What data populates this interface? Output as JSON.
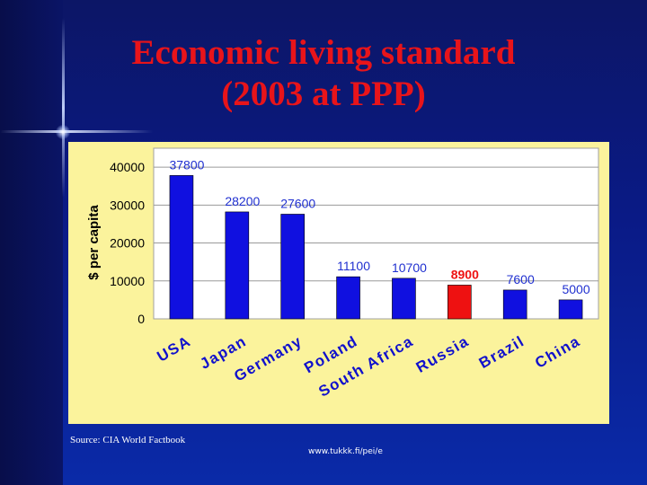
{
  "slide": {
    "title_line1": "Economic living standard",
    "title_line2": "(2003 at PPP)",
    "source": "Source: CIA World Factbook",
    "url": "www.tukkk.fi/pei/e"
  },
  "colors": {
    "title": "#e8141a",
    "bar_default": "#1010e0",
    "bar_highlight": "#ee1111",
    "label_default": "#2030d0",
    "label_highlight": "#ee1111",
    "panel": "#fbf39c"
  },
  "chart_data": {
    "type": "bar",
    "categories": [
      "USA",
      "Japan",
      "Germany",
      "Poland",
      "South Africa",
      "Russia",
      "Brazil",
      "China"
    ],
    "values": [
      37800,
      28200,
      27600,
      11100,
      10700,
      8900,
      7600,
      5000
    ],
    "data_labels": [
      "37800",
      "28200",
      "27600",
      "11100",
      "10700",
      "8900",
      "7600",
      "5000"
    ],
    "highlight_category": "Russia",
    "title": "",
    "xlabel": "",
    "ylabel": "$ per capita",
    "ylim": [
      0,
      45000
    ],
    "yticks": [
      0,
      10000,
      20000,
      30000,
      40000
    ],
    "ytick_labels": [
      "0",
      "10000",
      "20000",
      "30000",
      "40000"
    ],
    "grid": true,
    "legend": "none"
  }
}
